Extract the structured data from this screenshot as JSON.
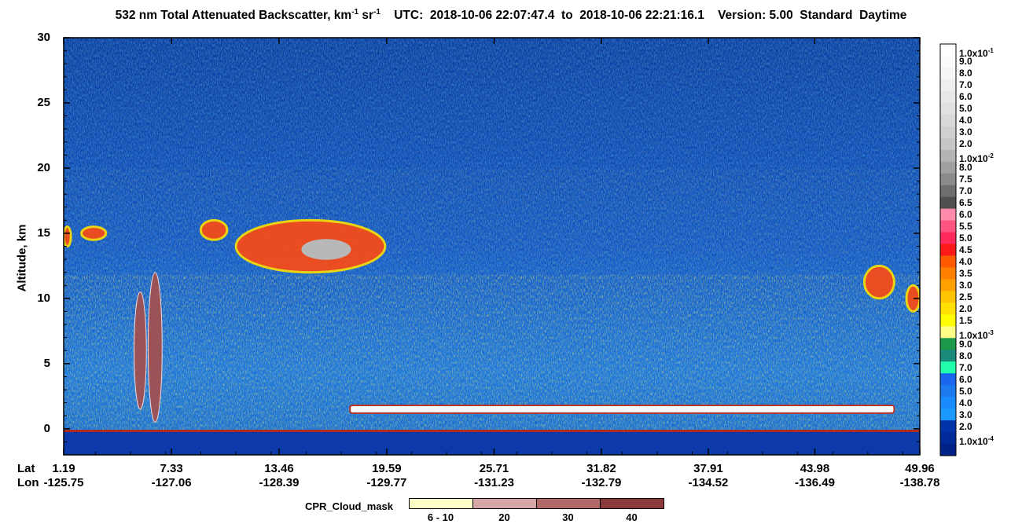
{
  "title": {
    "prefix": "532 nm Total Attenuated Backscatter, km",
    "exp1": "-1",
    "mid": " sr",
    "exp2": "-1",
    "suffix": "    UTC:  2018-10-06 22:07:47.4  to  2018-10-06 22:21:16.1    Version: 5.00  Standard  Daytime"
  },
  "yaxis": {
    "label": "Altitude, km",
    "ticks": [
      "30",
      "25",
      "20",
      "15",
      "10",
      "5",
      "0"
    ]
  },
  "xaxis": {
    "lat_label": "Lat",
    "lon_label": "Lon",
    "lat": [
      "1.19",
      "7.33",
      "13.46",
      "19.59",
      "25.71",
      "31.82",
      "37.91",
      "43.98",
      "49.96"
    ],
    "lon": [
      "-125.75",
      "-127.06",
      "-128.39",
      "-129.77",
      "-131.23",
      "-132.79",
      "-134.52",
      "-136.49",
      "-138.78"
    ]
  },
  "colorbar": {
    "labels": [
      {
        "m": "1.0x10",
        "e": "-1"
      },
      {
        "m": "9.0"
      },
      {
        "m": "8.0"
      },
      {
        "m": "7.0"
      },
      {
        "m": "6.0"
      },
      {
        "m": "5.0"
      },
      {
        "m": "4.0"
      },
      {
        "m": "3.0"
      },
      {
        "m": "2.0"
      },
      {
        "m": "1.0x10",
        "e": "-2"
      },
      {
        "m": "8.0"
      },
      {
        "m": "7.5"
      },
      {
        "m": "7.0"
      },
      {
        "m": "6.5"
      },
      {
        "m": "6.0"
      },
      {
        "m": "5.5"
      },
      {
        "m": "5.0"
      },
      {
        "m": "4.5"
      },
      {
        "m": "4.0"
      },
      {
        "m": "3.5"
      },
      {
        "m": "3.0"
      },
      {
        "m": "2.5"
      },
      {
        "m": "2.0"
      },
      {
        "m": "1.5"
      },
      {
        "m": "1.0x10",
        "e": "-3"
      },
      {
        "m": "9.0"
      },
      {
        "m": "8.0"
      },
      {
        "m": "7.0"
      },
      {
        "m": "6.0"
      },
      {
        "m": "5.0"
      },
      {
        "m": "4.0"
      },
      {
        "m": "3.0"
      },
      {
        "m": "2.0"
      },
      {
        "m": "1.0x10",
        "e": "-4"
      }
    ],
    "colors": [
      "#ffffff",
      "#fbfbfb",
      "#f5f5f5",
      "#eeeeee",
      "#e8e8e8",
      "#e1e1e1",
      "#d9d9d9",
      "#d0d0d0",
      "#c6c6c6",
      "#b4b4b4",
      "#a0a0a0",
      "#8a8a8a",
      "#6e6e6e",
      "#505050",
      "#ff8aaa",
      "#ff5580",
      "#ff2a5a",
      "#ff1a1a",
      "#ff5a00",
      "#ff8000",
      "#ffa000",
      "#ffc400",
      "#ffe000",
      "#ffff00",
      "#ffff88",
      "#1a9a4a",
      "#1a8a7a",
      "#22ffaa",
      "#1a66ee",
      "#1a7aee",
      "#1a8aff",
      "#1a99ff",
      "#0033aa",
      "#002a99",
      "#002288"
    ]
  },
  "cpr_mask": {
    "title": "CPR_Cloud_mask",
    "labels": [
      "6 - 10",
      "20",
      "30",
      "40"
    ],
    "colors": [
      "#ffffc8",
      "#d6a6a6",
      "#b06868",
      "#8a3a3a"
    ]
  },
  "chart_data": {
    "type": "heatmap",
    "ylabel": "Altitude, km",
    "ylim": [
      -2,
      30
    ],
    "x_lat": [
      1.19,
      7.33,
      13.46,
      19.59,
      25.71,
      31.82,
      37.91,
      43.98,
      49.96
    ],
    "x_lon": [
      -125.75,
      -127.06,
      -128.39,
      -129.77,
      -131.23,
      -132.79,
      -134.52,
      -136.49,
      -138.78
    ],
    "colorbar_range": [
      0.0001,
      0.1
    ],
    "features": [
      {
        "kind": "cirrus",
        "lat_range": [
          1.19,
          1.6
        ],
        "alt_range": [
          14,
          15.5
        ]
      },
      {
        "kind": "cirrus",
        "lat_range": [
          2.2,
          3.6
        ],
        "alt_range": [
          14.5,
          15.5
        ]
      },
      {
        "kind": "cirrus",
        "lat_range": [
          9.0,
          10.5
        ],
        "alt_range": [
          14.5,
          16
        ]
      },
      {
        "kind": "cirrus",
        "lat_range": [
          11.0,
          19.5
        ],
        "alt_range": [
          12,
          16
        ]
      },
      {
        "kind": "cirrus",
        "lat_range": [
          46.8,
          48.5
        ],
        "alt_range": [
          10,
          12.5
        ]
      },
      {
        "kind": "cirrus",
        "lat_range": [
          49.2,
          49.96
        ],
        "alt_range": [
          9,
          11
        ]
      },
      {
        "kind": "low_cloud",
        "lat_range": [
          17.5,
          48.5
        ],
        "alt_range": [
          0.3,
          1.8
        ]
      },
      {
        "kind": "cpr_column",
        "lat_range": [
          6.0,
          6.8
        ],
        "alt_range": [
          0.5,
          12
        ]
      },
      {
        "kind": "cpr_column",
        "lat_range": [
          5.2,
          5.9
        ],
        "alt_range": [
          1.5,
          10.5
        ]
      }
    ]
  }
}
